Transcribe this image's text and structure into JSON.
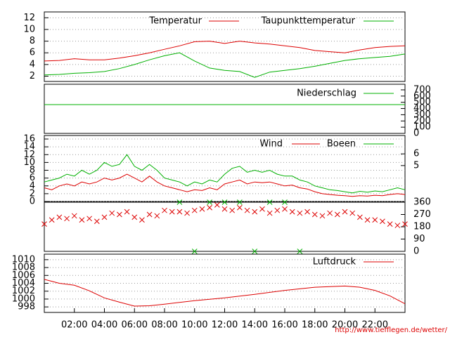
{
  "chart_data": [
    {
      "type": "line",
      "xlim": [
        0,
        24
      ],
      "ylim": [
        1.1,
        13
      ],
      "yticks": [
        2,
        4,
        6,
        8,
        10,
        12
      ],
      "grid": true,
      "x": [
        0,
        1,
        2,
        3,
        4,
        5,
        6,
        7,
        8,
        9,
        10,
        11,
        12,
        13,
        14,
        15,
        16,
        17,
        18,
        19,
        20,
        21,
        22,
        23,
        24
      ],
      "series": [
        {
          "name": "Temperatur",
          "color": "#dd0000",
          "values": [
            4.6,
            4.7,
            5.0,
            4.8,
            4.8,
            5.1,
            5.5,
            6.0,
            6.6,
            7.2,
            7.9,
            8.0,
            7.6,
            8.0,
            7.7,
            7.5,
            7.2,
            6.9,
            6.4,
            6.2,
            6.0,
            6.5,
            6.9,
            7.1,
            7.2
          ]
        },
        {
          "name": "Taupunkttemperatur",
          "color": "#00b000",
          "values": [
            2.2,
            2.3,
            2.5,
            2.6,
            2.8,
            3.3,
            4.0,
            4.8,
            5.5,
            6.0,
            4.6,
            3.4,
            3.0,
            2.8,
            1.8,
            2.7,
            3.0,
            3.3,
            3.7,
            4.2,
            4.7,
            5.0,
            5.2,
            5.4,
            5.8
          ]
        }
      ]
    },
    {
      "type": "line",
      "xlim": [
        0,
        24
      ],
      "y2lim": [
        0,
        790
      ],
      "y2ticks": [
        0,
        100,
        200,
        300,
        400,
        500,
        600,
        700
      ],
      "x": [
        0,
        24
      ],
      "series": [
        {
          "name": "Niederschlag",
          "color": "#00b000",
          "axis": "y2",
          "values": [
            463,
            463
          ]
        }
      ]
    },
    {
      "type": "line",
      "xlim": [
        0,
        24
      ],
      "ylim": [
        0,
        16.9
      ],
      "yticks": [
        0,
        2,
        4,
        6,
        8,
        10,
        12,
        14,
        16
      ],
      "grid": true,
      "y2lim": [
        1.93,
        7.57
      ],
      "y2ticks": [
        5,
        6
      ],
      "x": [
        0,
        0.5,
        1,
        1.5,
        2,
        2.5,
        3,
        3.5,
        4,
        4.5,
        5,
        5.5,
        6,
        6.5,
        7,
        7.5,
        8,
        8.5,
        9,
        9.5,
        10,
        10.5,
        11,
        11.5,
        12,
        12.5,
        13,
        13.5,
        14,
        14.5,
        15,
        15.5,
        16,
        16.5,
        17,
        17.5,
        18,
        18.5,
        19,
        19.5,
        20,
        20.5,
        21,
        21.5,
        22,
        22.5,
        23,
        23.5,
        24
      ],
      "series": [
        {
          "name": "Wind",
          "color": "#dd0000",
          "values": [
            3.5,
            3,
            4,
            4.5,
            4,
            5,
            4.5,
            5,
            6,
            5.5,
            6,
            7,
            6,
            5,
            6.5,
            5,
            4,
            3.5,
            3,
            2.5,
            3,
            2.8,
            3.5,
            3,
            4.5,
            5,
            5.5,
            4.5,
            5,
            4.8,
            5,
            4.5,
            4,
            4.2,
            3.5,
            3.2,
            2.5,
            2,
            1.8,
            1.6,
            1.5,
            1.3,
            1.5,
            1.4,
            1.6,
            1.5,
            1.8,
            2,
            1.8
          ]
        },
        {
          "name": "Boeen",
          "color": "#00b000",
          "values": [
            5,
            5.5,
            6,
            7,
            6.5,
            8,
            7,
            8,
            10,
            9,
            9.5,
            12,
            9,
            8,
            9.5,
            8,
            6,
            5.5,
            5,
            4,
            5,
            4.5,
            5.5,
            5,
            7,
            8.5,
            9,
            7.5,
            8,
            7.5,
            8,
            7,
            6.5,
            6.5,
            5.5,
            5,
            4,
            3.5,
            3,
            2.8,
            2.5,
            2.2,
            2.6,
            2.4,
            2.7,
            2.5,
            3,
            3.5,
            3
          ]
        }
      ]
    },
    {
      "type": "scatter",
      "xlim": [
        0,
        24
      ],
      "y2lim": [
        0,
        360
      ],
      "y2ticks": [
        0,
        90,
        180,
        270,
        360
      ],
      "series": [
        {
          "color": "#dd0000",
          "axis": "y2",
          "x": [
            0,
            0.5,
            1,
            1.5,
            2,
            2.5,
            3,
            3.5,
            4,
            4.5,
            5,
            5.5,
            6,
            6.5,
            7,
            7.5,
            8,
            8.5,
            9,
            9.5,
            10,
            10.5,
            11,
            11.5,
            12,
            12.5,
            13,
            13.5,
            14,
            14.5,
            15,
            15.5,
            16,
            16.5,
            17,
            17.5,
            18,
            18.5,
            19,
            19.5,
            20,
            20.5,
            21,
            21.5,
            22,
            22.5,
            23,
            23.5,
            24
          ],
          "values": [
            200,
            230,
            250,
            240,
            260,
            230,
            240,
            220,
            250,
            280,
            270,
            290,
            250,
            230,
            270,
            260,
            300,
            290,
            290,
            280,
            300,
            310,
            320,
            340,
            310,
            300,
            320,
            300,
            290,
            310,
            280,
            300,
            310,
            290,
            280,
            290,
            270,
            260,
            280,
            270,
            290,
            280,
            250,
            230,
            230,
            220,
            200,
            190,
            200
          ]
        },
        {
          "color": "#00b000",
          "axis": "y2",
          "x": [
            9,
            10,
            11,
            12,
            13,
            14,
            15,
            16,
            17
          ],
          "values": [
            360,
            0,
            360,
            360,
            360,
            0,
            360,
            360,
            0
          ]
        }
      ]
    },
    {
      "type": "line",
      "xlim": [
        0,
        24
      ],
      "ylim": [
        996.6,
        1011.4
      ],
      "yticks": [
        998,
        1000,
        1002,
        1004,
        1006,
        1008,
        1010
      ],
      "grid": true,
      "xticks": [
        {
          "value": 2,
          "label": "02:00"
        },
        {
          "value": 4,
          "label": "04:00"
        },
        {
          "value": 6,
          "label": "06:00"
        },
        {
          "value": 8,
          "label": "08:00"
        },
        {
          "value": 10,
          "label": "10:00"
        },
        {
          "value": 12,
          "label": "12:00"
        },
        {
          "value": 14,
          "label": "14:00"
        },
        {
          "value": 16,
          "label": "16:00"
        },
        {
          "value": 18,
          "label": "18:00"
        },
        {
          "value": 20,
          "label": "20:00"
        },
        {
          "value": 22,
          "label": "22:00"
        }
      ],
      "x": [
        0,
        1,
        2,
        3,
        4,
        5,
        6,
        7,
        8,
        10,
        12,
        14,
        16,
        18,
        20,
        21,
        22,
        23,
        24
      ],
      "series": [
        {
          "name": "Luftdruck",
          "color": "#dd0000",
          "values": [
            1005,
            1004,
            1003.5,
            1002.1,
            1000.3,
            999.2,
            998.2,
            998.3,
            998.7,
            999.6,
            1000.3,
            1001.2,
            1002.2,
            1003,
            1003.3,
            1003,
            1002.2,
            1000.8,
            998.8
          ]
        }
      ]
    }
  ],
  "footer": "http://www.tiefflegen.de/wetter/"
}
